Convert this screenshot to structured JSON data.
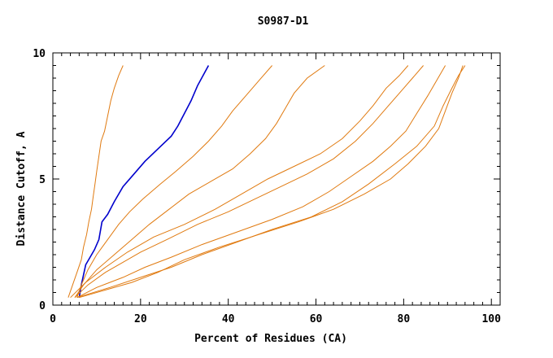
{
  "chart_data": {
    "type": "line",
    "title": "S0987-D1",
    "xlabel": "Percent of Residues (CA)",
    "ylabel": "Distance Cutoff, A",
    "xlim": [
      0,
      102
    ],
    "ylim": [
      0,
      10
    ],
    "x_ticks": [
      0,
      20,
      40,
      60,
      80,
      100
    ],
    "y_ticks": [
      0,
      5,
      10
    ],
    "grid": false,
    "legend": "none",
    "highlight_color": "#0000cc",
    "series_color": "#e07a10",
    "series": [
      {
        "highlight": false,
        "points": [
          [
            3.5,
            0.3
          ],
          [
            4.5,
            0.8
          ],
          [
            5.5,
            1.3
          ],
          [
            6.5,
            1.8
          ],
          [
            7.0,
            2.3
          ],
          [
            7.7,
            2.8
          ],
          [
            8.2,
            3.3
          ],
          [
            8.8,
            3.8
          ],
          [
            9.2,
            4.3
          ],
          [
            9.6,
            4.8
          ],
          [
            10.0,
            5.3
          ],
          [
            10.5,
            5.9
          ],
          [
            11.0,
            6.5
          ],
          [
            11.8,
            6.9
          ],
          [
            12.5,
            7.5
          ],
          [
            13.2,
            8.1
          ],
          [
            14.0,
            8.6
          ],
          [
            15.0,
            9.1
          ],
          [
            16.0,
            9.5
          ]
        ]
      },
      {
        "highlight": true,
        "points": [
          [
            6.0,
            0.3
          ],
          [
            6.5,
            0.8
          ],
          [
            7.0,
            1.2
          ],
          [
            7.5,
            1.6
          ],
          [
            8.5,
            1.9
          ],
          [
            9.5,
            2.2
          ],
          [
            10.5,
            2.6
          ],
          [
            11.2,
            3.3
          ],
          [
            12.5,
            3.6
          ],
          [
            14.0,
            4.1
          ],
          [
            16.0,
            4.7
          ],
          [
            18.5,
            5.2
          ],
          [
            21.0,
            5.7
          ],
          [
            24.0,
            6.2
          ],
          [
            27.0,
            6.7
          ],
          [
            28.5,
            7.1
          ],
          [
            30.0,
            7.6
          ],
          [
            31.5,
            8.1
          ],
          [
            33.0,
            8.7
          ],
          [
            35.5,
            9.5
          ]
        ]
      },
      {
        "highlight": false,
        "points": [
          [
            5.5,
            0.3
          ],
          [
            6.5,
            0.8
          ],
          [
            8.0,
            1.4
          ],
          [
            10.0,
            2.0
          ],
          [
            12.5,
            2.6
          ],
          [
            15.0,
            3.2
          ],
          [
            17.5,
            3.7
          ],
          [
            20.5,
            4.2
          ],
          [
            24.5,
            4.8
          ],
          [
            28.0,
            5.3
          ],
          [
            32.0,
            5.9
          ],
          [
            35.5,
            6.5
          ],
          [
            38.5,
            7.1
          ],
          [
            41.0,
            7.7
          ],
          [
            44.0,
            8.3
          ],
          [
            47.0,
            8.9
          ],
          [
            50.0,
            9.5
          ]
        ]
      },
      {
        "highlight": false,
        "points": [
          [
            5.0,
            0.3
          ],
          [
            7.0,
            0.8
          ],
          [
            10.0,
            1.4
          ],
          [
            14.0,
            2.0
          ],
          [
            18.0,
            2.6
          ],
          [
            22.0,
            3.2
          ],
          [
            26.5,
            3.8
          ],
          [
            31.0,
            4.4
          ],
          [
            36.0,
            4.9
          ],
          [
            41.0,
            5.4
          ],
          [
            45.0,
            6.0
          ],
          [
            48.5,
            6.6
          ],
          [
            51.0,
            7.2
          ],
          [
            53.0,
            7.8
          ],
          [
            55.0,
            8.4
          ],
          [
            58.0,
            9.0
          ],
          [
            62.0,
            9.5
          ]
        ]
      },
      {
        "highlight": false,
        "points": [
          [
            4.0,
            0.3
          ],
          [
            7.5,
            0.9
          ],
          [
            12.0,
            1.5
          ],
          [
            17.0,
            2.1
          ],
          [
            23.0,
            2.7
          ],
          [
            30.0,
            3.2
          ],
          [
            37.0,
            3.8
          ],
          [
            43.0,
            4.4
          ],
          [
            49.0,
            5.0
          ],
          [
            55.0,
            5.5
          ],
          [
            61.0,
            6.0
          ],
          [
            66.0,
            6.6
          ],
          [
            70.0,
            7.3
          ],
          [
            73.0,
            7.9
          ],
          [
            76.0,
            8.6
          ],
          [
            79.0,
            9.1
          ],
          [
            81.0,
            9.5
          ]
        ]
      },
      {
        "highlight": false,
        "points": [
          [
            5.0,
            0.3
          ],
          [
            8.0,
            0.8
          ],
          [
            12.0,
            1.3
          ],
          [
            16.0,
            1.7
          ],
          [
            20.0,
            2.1
          ],
          [
            26.0,
            2.6
          ],
          [
            33.0,
            3.2
          ],
          [
            40.0,
            3.7
          ],
          [
            46.0,
            4.2
          ],
          [
            52.0,
            4.7
          ],
          [
            58.0,
            5.2
          ],
          [
            64.0,
            5.8
          ],
          [
            69.0,
            6.5
          ],
          [
            73.0,
            7.2
          ],
          [
            76.5,
            7.9
          ],
          [
            80.0,
            8.6
          ],
          [
            82.5,
            9.1
          ],
          [
            84.5,
            9.5
          ]
        ]
      },
      {
        "highlight": false,
        "points": [
          [
            5.5,
            0.3
          ],
          [
            10.0,
            0.7
          ],
          [
            16.0,
            1.1
          ],
          [
            21.0,
            1.5
          ],
          [
            27.0,
            1.9
          ],
          [
            34.0,
            2.4
          ],
          [
            42.0,
            2.9
          ],
          [
            50.0,
            3.4
          ],
          [
            57.0,
            3.9
          ],
          [
            63.0,
            4.5
          ],
          [
            68.0,
            5.1
          ],
          [
            73.0,
            5.7
          ],
          [
            77.0,
            6.3
          ],
          [
            80.5,
            6.9
          ],
          [
            83.0,
            7.6
          ],
          [
            85.5,
            8.3
          ],
          [
            87.5,
            8.9
          ],
          [
            89.5,
            9.5
          ]
        ]
      },
      {
        "highlight": false,
        "points": [
          [
            6.0,
            0.3
          ],
          [
            12.0,
            0.6
          ],
          [
            18.0,
            0.9
          ],
          [
            24.0,
            1.3
          ],
          [
            30.0,
            1.8
          ],
          [
            38.0,
            2.3
          ],
          [
            47.0,
            2.8
          ],
          [
            56.0,
            3.3
          ],
          [
            64.0,
            3.8
          ],
          [
            71.0,
            4.4
          ],
          [
            77.0,
            5.0
          ],
          [
            81.0,
            5.6
          ],
          [
            85.0,
            6.3
          ],
          [
            88.0,
            7.0
          ],
          [
            89.5,
            7.7
          ],
          [
            91.0,
            8.4
          ],
          [
            92.5,
            9.0
          ],
          [
            93.5,
            9.5
          ]
        ]
      },
      {
        "highlight": false,
        "points": [
          [
            5.5,
            0.3
          ],
          [
            13.0,
            0.7
          ],
          [
            20.0,
            1.1
          ],
          [
            27.0,
            1.5
          ],
          [
            34.0,
            2.0
          ],
          [
            42.0,
            2.5
          ],
          [
            50.0,
            3.0
          ],
          [
            59.0,
            3.5
          ],
          [
            66.0,
            4.1
          ],
          [
            72.0,
            4.8
          ],
          [
            78.0,
            5.6
          ],
          [
            83.0,
            6.3
          ],
          [
            87.0,
            7.1
          ],
          [
            89.0,
            7.9
          ],
          [
            91.0,
            8.6
          ],
          [
            92.5,
            9.1
          ],
          [
            94.0,
            9.5
          ]
        ]
      }
    ]
  }
}
